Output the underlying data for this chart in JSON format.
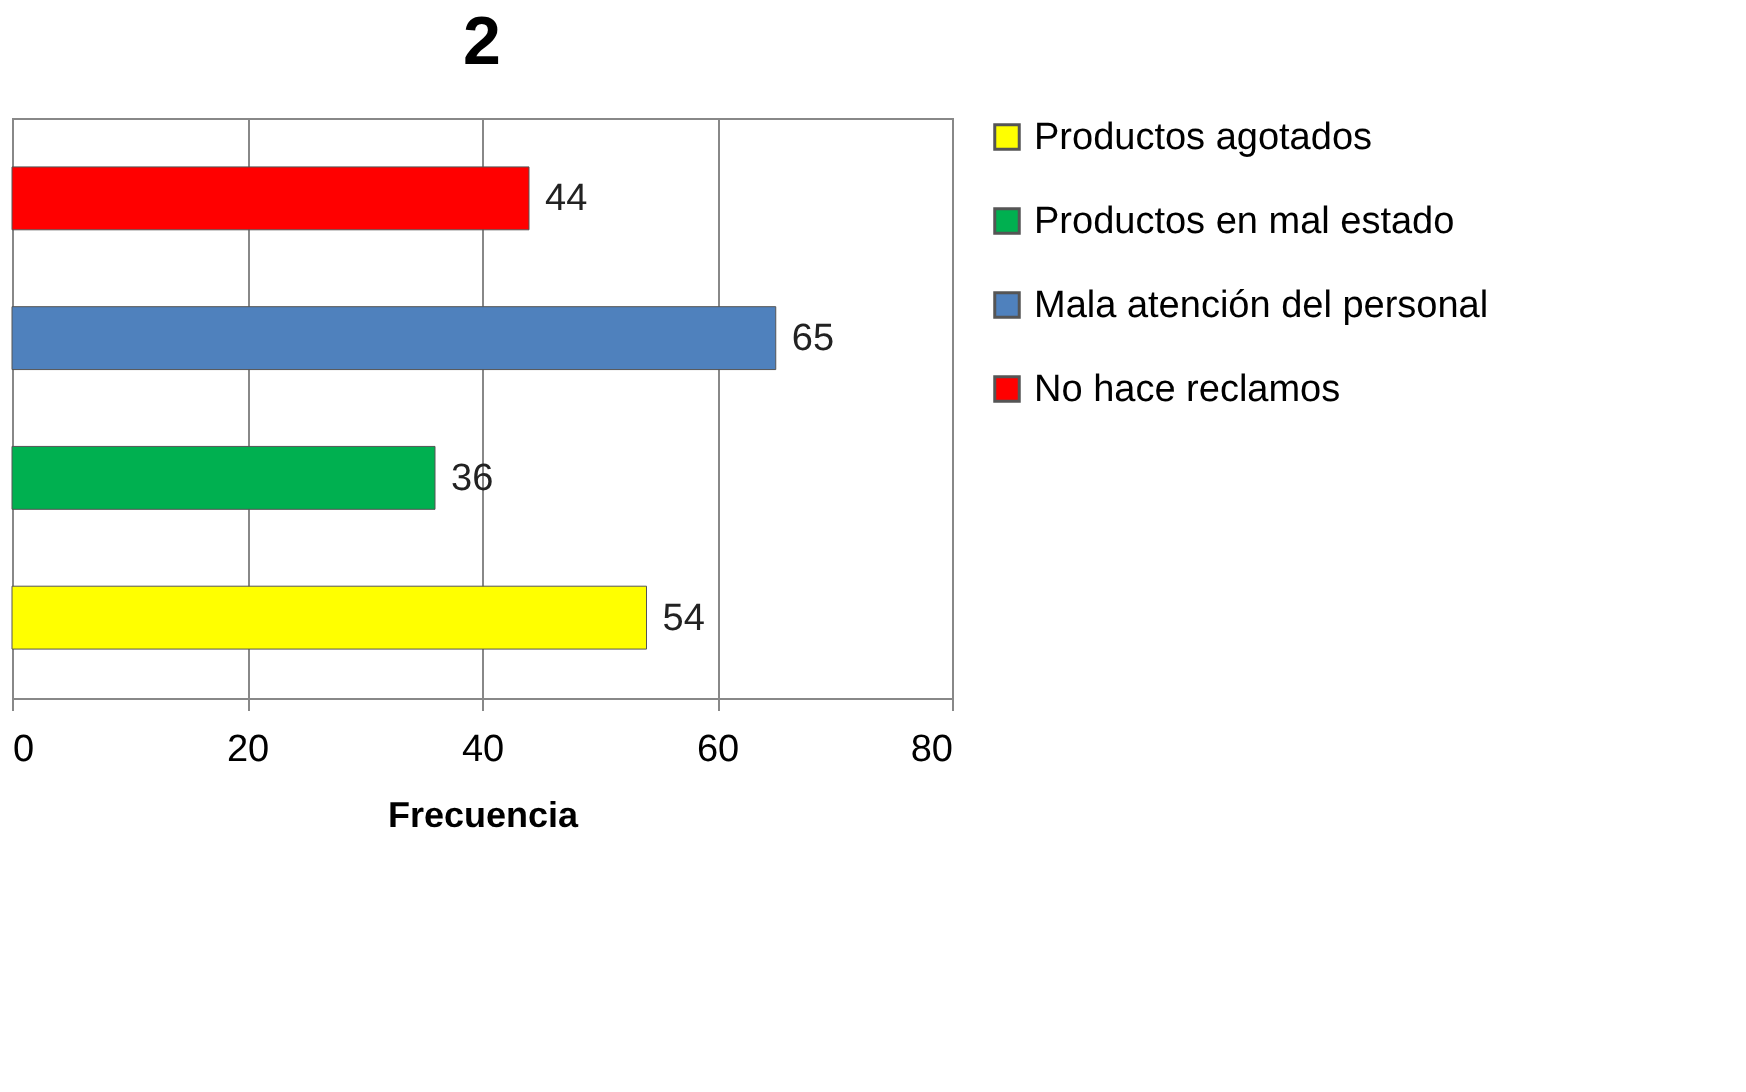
{
  "chart_data": {
    "type": "bar",
    "orientation": "horizontal",
    "title": "2",
    "xlabel": "Frecuencia",
    "categories": [
      null,
      null,
      null,
      null
    ],
    "series": [
      {
        "name": "Productos agotados",
        "color": "#ffff00",
        "values": [
          null,
          null,
          null,
          54
        ]
      },
      {
        "name": "Productos en mal estado",
        "color": "#00b050",
        "values": [
          null,
          null,
          36,
          null
        ]
      },
      {
        "name": "Mala atención del personal",
        "color": "#4f81bd",
        "values": [
          null,
          65,
          null,
          null
        ]
      },
      {
        "name": "No hace reclamos",
        "color": "#ff0000",
        "values": [
          44,
          null,
          null,
          null
        ]
      }
    ],
    "xlim": [
      0,
      80
    ],
    "xticks": [
      0,
      20,
      40,
      60,
      80
    ],
    "grid": "x",
    "data_labels": true,
    "legend": "right",
    "tick_labels": "x"
  }
}
